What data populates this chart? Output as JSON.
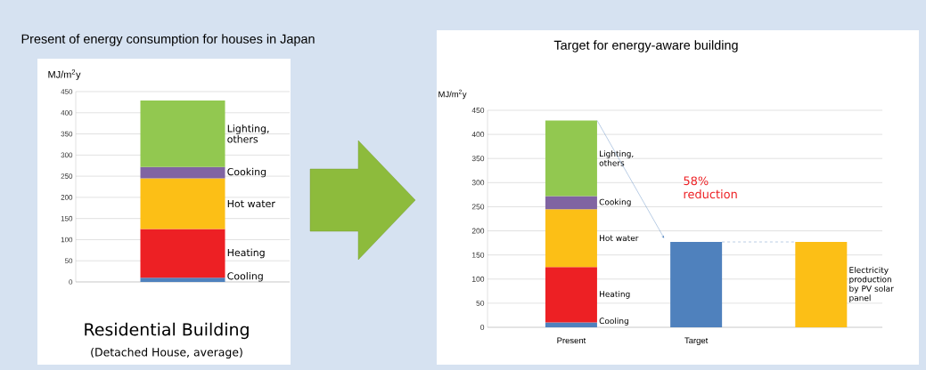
{
  "chart_data": [
    {
      "type": "bar",
      "title": "Present of energy consumption for houses in Japan",
      "ylabel": "MJ/m$^{2}$y",
      "stacked": true,
      "grid": "y",
      "categories": [
        null
      ],
      "series": [
        {
          "name": "Cooling",
          "color": "#4f81bd",
          "values": [
            10
          ]
        },
        {
          "name": "Heating",
          "color": "#ed2024",
          "values": [
            115
          ]
        },
        {
          "name": "Hot water",
          "color": "#fcbf16",
          "values": [
            120
          ]
        },
        {
          "name": "Cooking",
          "color": "#8064a2",
          "values": [
            27
          ]
        },
        {
          "name": "Lighting, others",
          "color": "#92c850",
          "values": [
            157
          ]
        }
      ],
      "ylim": [
        0,
        450
      ],
      "yticks": [
        0,
        50,
        100,
        150,
        200,
        250,
        300,
        350,
        400,
        450
      ],
      "annotations": [
        "Residential Building",
        "(Detached House, average)"
      ]
    },
    {
      "type": "bar",
      "title": "Target for energy-aware building",
      "ylabel": "MJ/m$^{2}$y",
      "stacked": true,
      "grid": "y",
      "categories": [
        "Present",
        "Target",
        null
      ],
      "series": [
        {
          "name": "Cooling",
          "color": "#4f81bd",
          "values": [
            10,
            null,
            null
          ]
        },
        {
          "name": "Heating",
          "color": "#ed2024",
          "values": [
            115,
            null,
            null
          ]
        },
        {
          "name": "Hot water",
          "color": "#fcbf16",
          "values": [
            120,
            null,
            null
          ]
        },
        {
          "name": "Cooking",
          "color": "#8064a2",
          "values": [
            27,
            null,
            null
          ]
        },
        {
          "name": "Lighting, others",
          "color": "#92c850",
          "values": [
            157,
            null,
            null
          ]
        },
        {
          "color": "#4f81bd",
          "values": [
            null,
            177,
            null
          ]
        },
        {
          "name": "Electricity production by PV solar panel",
          "color": "#fcbf16",
          "values": [
            null,
            null,
            177
          ]
        }
      ],
      "ylim": [
        0,
        450
      ],
      "yticks": [
        0,
        50,
        100,
        150,
        200,
        250,
        300,
        350,
        400,
        450
      ],
      "ref_lines": [
        {
          "axis": "y",
          "value": 177,
          "color": "#4f81bd",
          "line_style": "dashed"
        }
      ],
      "annotations": [
        "58% reduction"
      ]
    }
  ]
}
